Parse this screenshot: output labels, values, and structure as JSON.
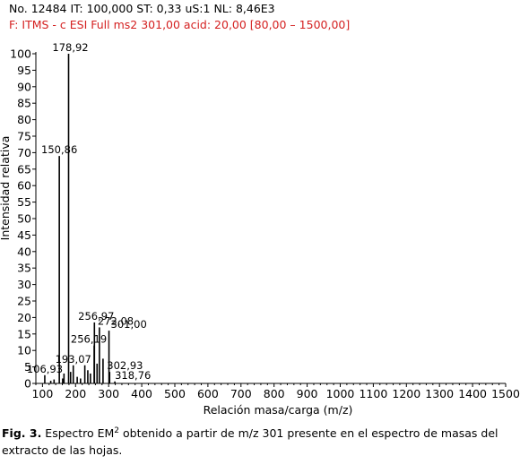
{
  "header": {
    "line1": "No. 12484 IT: 100,000 ST: 0,33 uS:1 NL: 8,46E3",
    "line2": "F: ITMS - c ESI Full ms2 301,00 acid: 20,00 [80,00 – 1500,00]",
    "line2_color": "#d42020"
  },
  "caption": {
    "label": "Fig. 3.",
    "text_before": " Espectro EM",
    "superscript": "2",
    "text_after": " obtenido a partir de m/z 301 presente en el espectro de masas del extracto de las hojas."
  },
  "chart_data": {
    "type": "bar",
    "xlabel": "Relación masa/carga (m/z)",
    "ylabel": "Intensidad relativa",
    "xlim": [
      80,
      1500
    ],
    "ylim": [
      0,
      100
    ],
    "xticks": [
      100,
      200,
      300,
      400,
      500,
      600,
      700,
      800,
      900,
      1000,
      1100,
      1200,
      1300,
      1400,
      1500
    ],
    "yticks": [
      0,
      5,
      10,
      15,
      20,
      25,
      30,
      35,
      40,
      45,
      50,
      55,
      60,
      65,
      70,
      75,
      80,
      85,
      90,
      95,
      100
    ],
    "grid": false,
    "peaks": [
      {
        "x": 106.93,
        "y": 2.5,
        "label": "106,93"
      },
      {
        "x": 125.0,
        "y": 0.8
      },
      {
        "x": 135.0,
        "y": 1.2
      },
      {
        "x": 150.86,
        "y": 69,
        "label": "150,86"
      },
      {
        "x": 161.0,
        "y": 1.5
      },
      {
        "x": 165.0,
        "y": 3
      },
      {
        "x": 178.92,
        "y": 100,
        "label": "178,92"
      },
      {
        "x": 185.0,
        "y": 3.5
      },
      {
        "x": 193.07,
        "y": 5.5,
        "label": "193,07"
      },
      {
        "x": 205.0,
        "y": 2
      },
      {
        "x": 215.0,
        "y": 1.5
      },
      {
        "x": 228.0,
        "y": 5.5
      },
      {
        "x": 237.0,
        "y": 4
      },
      {
        "x": 245.0,
        "y": 3
      },
      {
        "x": 256.19,
        "y": 11.5,
        "label": "256,19"
      },
      {
        "x": 256.97,
        "y": 18.5,
        "label": "256,97"
      },
      {
        "x": 265.0,
        "y": 6
      },
      {
        "x": 272.08,
        "y": 17,
        "label": "272,08"
      },
      {
        "x": 283.0,
        "y": 7.5
      },
      {
        "x": 301.0,
        "y": 16,
        "label": "301,00"
      },
      {
        "x": 302.93,
        "y": 3.5,
        "label": "302,93"
      },
      {
        "x": 318.76,
        "y": 0.6,
        "label": "318,76"
      }
    ]
  }
}
